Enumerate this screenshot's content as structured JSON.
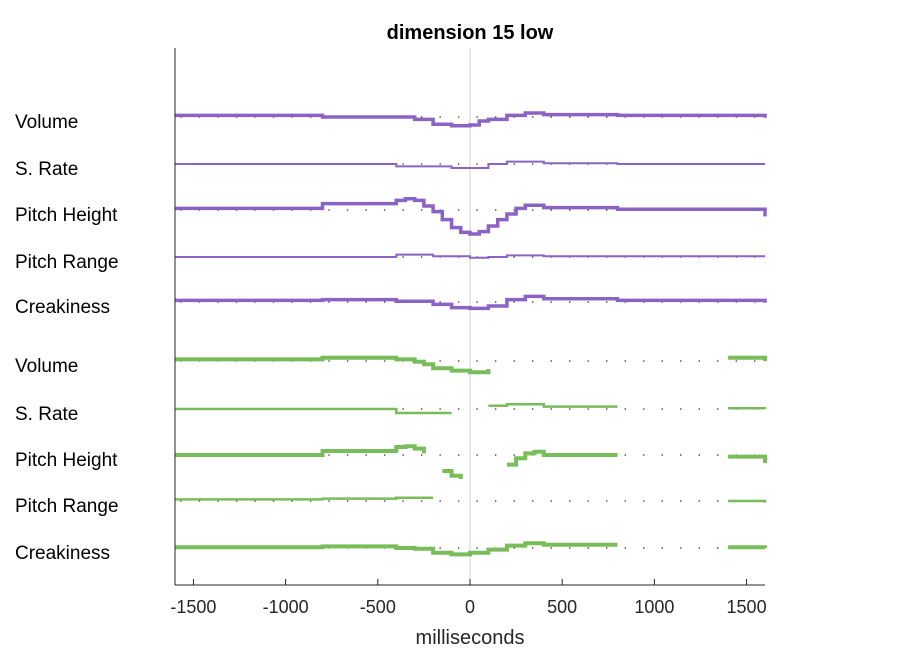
{
  "chart_data": {
    "type": "line",
    "title": "dimension 15 low",
    "xlabel": "milliseconds",
    "ylabel": "",
    "xlim": [
      -1600,
      1600
    ],
    "xticks": [
      -1500,
      -1000,
      -500,
      0,
      500,
      1000,
      1500
    ],
    "grid": false,
    "center_line_x": 0,
    "colors": {
      "purple": "#8a63c5",
      "green": "#78bd5a"
    },
    "groups": [
      {
        "color": "#8a63c5",
        "rows": [
          {
            "label": "Volume",
            "stroke": 3.5,
            "segments": [
              [
                [
                  -1600,
                  2
                ],
                [
                  -800,
                  2
                ],
                [
                  -800,
                  0
                ],
                [
                  -300,
                  0
                ],
                [
                  -300,
                  -3
                ],
                [
                  -200,
                  -3
                ],
                [
                  -200,
                  -9
                ],
                [
                  -100,
                  -9
                ],
                [
                  -100,
                  -11
                ],
                [
                  0,
                  -11
                ],
                [
                  0,
                  -10
                ],
                [
                  50,
                  -10
                ],
                [
                  50,
                  -5
                ],
                [
                  100,
                  -5
                ],
                [
                  100,
                  -3
                ],
                [
                  200,
                  -3
                ],
                [
                  200,
                  2
                ],
                [
                  300,
                  2
                ],
                [
                  300,
                  5
                ],
                [
                  400,
                  5
                ],
                [
                  400,
                  3
                ],
                [
                  800,
                  3
                ],
                [
                  800,
                  2
                ],
                [
                  1600,
                  2
                ],
                [
                  1600,
                  -1
                ]
              ]
            ]
          },
          {
            "label": "S. Rate",
            "stroke": 2,
            "segments": [
              [
                [
                  -1600,
                  0
                ],
                [
                  -400,
                  0
                ],
                [
                  -400,
                  -3
                ],
                [
                  -100,
                  -3
                ],
                [
                  -100,
                  -5
                ],
                [
                  100,
                  -5
                ],
                [
                  100,
                  0
                ],
                [
                  200,
                  0
                ],
                [
                  200,
                  3
                ],
                [
                  400,
                  3
                ],
                [
                  400,
                  1
                ],
                [
                  800,
                  1
                ],
                [
                  800,
                  0
                ],
                [
                  1600,
                  0
                ]
              ]
            ]
          },
          {
            "label": "Pitch Height",
            "stroke": 3.5,
            "segments": [
              [
                [
                  -1600,
                  2
                ],
                [
                  -800,
                  2
                ],
                [
                  -800,
                  8
                ],
                [
                  -400,
                  8
                ],
                [
                  -400,
                  12
                ],
                [
                  -350,
                  12
                ],
                [
                  -350,
                  14
                ],
                [
                  -300,
                  14
                ],
                [
                  -300,
                  12
                ],
                [
                  -250,
                  12
                ],
                [
                  -250,
                  5
                ],
                [
                  -200,
                  5
                ],
                [
                  -200,
                  -2
                ],
                [
                  -150,
                  -2
                ],
                [
                  -150,
                  -12
                ],
                [
                  -100,
                  -12
                ],
                [
                  -100,
                  -22
                ],
                [
                  -50,
                  -22
                ],
                [
                  -50,
                  -28
                ],
                [
                  0,
                  -28
                ],
                [
                  0,
                  -30
                ],
                [
                  50,
                  -30
                ],
                [
                  50,
                  -27
                ],
                [
                  100,
                  -27
                ],
                [
                  100,
                  -20
                ],
                [
                  150,
                  -20
                ],
                [
                  150,
                  -12
                ],
                [
                  200,
                  -12
                ],
                [
                  200,
                  -5
                ],
                [
                  250,
                  -5
                ],
                [
                  250,
                  2
                ],
                [
                  300,
                  2
                ],
                [
                  300,
                  6
                ],
                [
                  400,
                  6
                ],
                [
                  400,
                  3
                ],
                [
                  800,
                  3
                ],
                [
                  800,
                  1
                ],
                [
                  1600,
                  1
                ],
                [
                  1600,
                  -8
                ]
              ]
            ]
          },
          {
            "label": "Pitch Range",
            "stroke": 2,
            "segments": [
              [
                [
                  -1600,
                  0
                ],
                [
                  -400,
                  0
                ],
                [
                  -400,
                  3
                ],
                [
                  -200,
                  3
                ],
                [
                  -200,
                  1
                ],
                [
                  0,
                  1
                ],
                [
                  0,
                  -1
                ],
                [
                  100,
                  -1
                ],
                [
                  100,
                  0
                ],
                [
                  200,
                  0
                ],
                [
                  200,
                  2
                ],
                [
                  400,
                  2
                ],
                [
                  400,
                  1
                ],
                [
                  1600,
                  1
                ]
              ]
            ]
          },
          {
            "label": "Creakiness",
            "stroke": 3.5,
            "segments": [
              [
                [
                  -1600,
                  2
                ],
                [
                  -800,
                  2
                ],
                [
                  -800,
                  3
                ],
                [
                  -400,
                  3
                ],
                [
                  -400,
                  1
                ],
                [
                  -200,
                  1
                ],
                [
                  -200,
                  -3
                ],
                [
                  -100,
                  -3
                ],
                [
                  -100,
                  -7
                ],
                [
                  0,
                  -7
                ],
                [
                  0,
                  -8
                ],
                [
                  100,
                  -8
                ],
                [
                  100,
                  -5
                ],
                [
                  200,
                  -5
                ],
                [
                  200,
                  3
                ],
                [
                  300,
                  3
                ],
                [
                  300,
                  7
                ],
                [
                  400,
                  7
                ],
                [
                  400,
                  4
                ],
                [
                  800,
                  4
                ],
                [
                  800,
                  2
                ],
                [
                  1600,
                  2
                ],
                [
                  1600,
                  -1
                ]
              ]
            ]
          }
        ]
      },
      {
        "color": "#78bd5a",
        "rows": [
          {
            "label": "Volume",
            "stroke": 4,
            "segments": [
              [
                [
                  -1600,
                  2
                ],
                [
                  -800,
                  2
                ],
                [
                  -800,
                  4
                ],
                [
                  -400,
                  4
                ],
                [
                  -400,
                  2
                ],
                [
                  -300,
                  2
                ],
                [
                  -300,
                  -1
                ],
                [
                  -250,
                  -1
                ],
                [
                  -250,
                  -4
                ],
                [
                  -200,
                  -4
                ],
                [
                  -200,
                  -9
                ],
                [
                  -100,
                  -9
                ],
                [
                  -100,
                  -12
                ],
                [
                  0,
                  -12
                ],
                [
                  0,
                  -14
                ],
                [
                  100,
                  -14
                ],
                [
                  100,
                  -10
                ]
              ],
              [
                [
                  1400,
                  4
                ],
                [
                  1600,
                  4
                ],
                [
                  1600,
                  0
                ]
              ]
            ]
          },
          {
            "label": "S. Rate",
            "stroke": 2.5,
            "segments": [
              [
                [
                  -1600,
                  0
                ],
                [
                  -400,
                  0
                ],
                [
                  -400,
                  -5
                ],
                [
                  -100,
                  -5
                ]
              ],
              [
                [
                  100,
                  4
                ],
                [
                  200,
                  4
                ],
                [
                  200,
                  6
                ],
                [
                  400,
                  6
                ],
                [
                  400,
                  3
                ],
                [
                  800,
                  3
                ]
              ],
              [
                [
                  1400,
                  1
                ],
                [
                  1600,
                  1
                ],
                [
                  1600,
                  0
                ]
              ]
            ]
          },
          {
            "label": "Pitch Height",
            "stroke": 4,
            "segments": [
              [
                [
                  -1600,
                  0
                ],
                [
                  -800,
                  0
                ],
                [
                  -800,
                  5
                ],
                [
                  -400,
                  5
                ],
                [
                  -400,
                  10
                ],
                [
                  -350,
                  10
                ],
                [
                  -350,
                  11
                ],
                [
                  -300,
                  11
                ],
                [
                  -300,
                  8
                ],
                [
                  -250,
                  8
                ],
                [
                  -250,
                  2
                ]
              ],
              [
                [
                  -150,
                  -20
                ],
                [
                  -100,
                  -20
                ],
                [
                  -100,
                  -26
                ],
                [
                  -50,
                  -26
                ],
                [
                  -50,
                  -30
                ]
              ],
              [
                [
                  200,
                  -12
                ],
                [
                  250,
                  -12
                ],
                [
                  250,
                  -4
                ],
                [
                  300,
                  -4
                ],
                [
                  300,
                  2
                ],
                [
                  350,
                  2
                ],
                [
                  350,
                  4
                ],
                [
                  400,
                  4
                ],
                [
                  400,
                  0
                ],
                [
                  800,
                  0
                ]
              ],
              [
                [
                  1400,
                  -2
                ],
                [
                  1600,
                  -2
                ],
                [
                  1600,
                  -10
                ]
              ]
            ]
          },
          {
            "label": "Pitch Range",
            "stroke": 2.5,
            "segments": [
              [
                [
                  -1600,
                  2
                ],
                [
                  -800,
                  2
                ],
                [
                  -800,
                  3
                ],
                [
                  -400,
                  3
                ],
                [
                  -400,
                  4
                ],
                [
                  -200,
                  4
                ]
              ],
              [
                [
                  1400,
                  0
                ],
                [
                  1600,
                  0
                ],
                [
                  1600,
                  -2
                ]
              ]
            ]
          },
          {
            "label": "Creakiness",
            "stroke": 4,
            "segments": [
              [
                [
                  -1600,
                  1
                ],
                [
                  -800,
                  1
                ],
                [
                  -800,
                  2
                ],
                [
                  -400,
                  2
                ],
                [
                  -400,
                  0
                ],
                [
                  -300,
                  0
                ],
                [
                  -300,
                  -1
                ],
                [
                  -200,
                  -1
                ],
                [
                  -200,
                  -6
                ],
                [
                  -100,
                  -6
                ],
                [
                  -100,
                  -8
                ],
                [
                  0,
                  -8
                ],
                [
                  0,
                  -6
                ],
                [
                  100,
                  -6
                ],
                [
                  100,
                  -2
                ],
                [
                  200,
                  -2
                ],
                [
                  200,
                  3
                ],
                [
                  300,
                  3
                ],
                [
                  300,
                  6
                ],
                [
                  400,
                  6
                ],
                [
                  400,
                  4
                ],
                [
                  800,
                  4
                ]
              ],
              [
                [
                  1400,
                  1
                ],
                [
                  1600,
                  1
                ],
                [
                  1600,
                  0
                ]
              ]
            ]
          }
        ]
      }
    ]
  }
}
